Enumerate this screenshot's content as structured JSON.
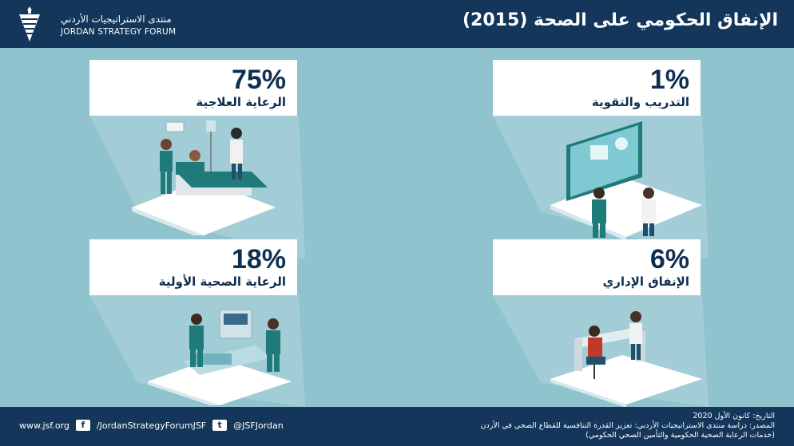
{
  "brand": {
    "name_ar": "منتدى الاستراتيجيات الأردني",
    "name_en": "JORDAN STRATEGY FORUM"
  },
  "title": "الإنفاق الحكومي على الصحة (2015)",
  "cards": [
    {
      "percent": "75%",
      "label": "الرعاية العلاجية",
      "icon": "hospital-bed-scene"
    },
    {
      "percent": "1%",
      "label": "التدريب والتقوية",
      "icon": "training-screen-scene"
    },
    {
      "percent": "18%",
      "label": "الرعاية الصحية الأولية",
      "icon": "primary-care-scene"
    },
    {
      "percent": "6%",
      "label": "الإنفاق الإداري",
      "icon": "office-desk-scene"
    }
  ],
  "footer": {
    "website": "www.jsf.org",
    "facebook": "/JordanStrategyForumJSF",
    "twitter": "@JSFJordan",
    "date": "التاريخ: كانون الأول 2020",
    "source_line1": "المصدر: دراسة منتدى الاستراتيجيات الأردني: تعزيز القدرة التنافسية للقطاع الصحي في الأردن",
    "source_line2": "(خدمات الرعاية الصحية الحكومية والتأمين الصحي الحكومي)"
  },
  "colors": {
    "navy": "#13365a",
    "background": "#8fc3cd",
    "teal": "#1f7a7a"
  }
}
